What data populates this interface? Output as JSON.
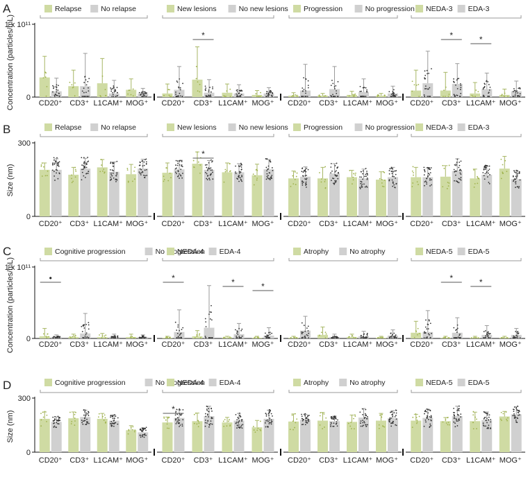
{
  "colors": {
    "green": "#cfdba3",
    "gray": "#d0d0d0",
    "green_dot": "#9fb24c",
    "gray_dot": "#333333",
    "axis": "#111111",
    "bracket": "#9a9a9a",
    "err_green": "#a7b664",
    "err_gray": "#9a9a9a"
  },
  "chart_data": [
    {
      "panel": "A",
      "type": "bar",
      "ylabel": "Concentration (particles/mL)",
      "ytick_labels": [
        "0",
        "1 x 10¹¹"
      ],
      "ylim": [
        0,
        1.0
      ],
      "groups": [
        {
          "legend": [
            "Relapse",
            "No relapse"
          ],
          "categories": [
            "CD20⁺",
            "CD3⁺",
            "L1CAM⁺",
            "MOG⁺"
          ],
          "series": [
            {
              "name": "Relapse",
              "values": [
                0.27,
                0.15,
                0.19,
                0.1
              ],
              "errors": [
                0.29,
                0.22,
                0.34,
                0.15
              ]
            },
            {
              "name": "No relapse",
              "values": [
                0.08,
                0.15,
                0.05,
                0.05
              ],
              "errors": [
                0.18,
                0.45,
                0.18,
                0.07
              ]
            }
          ],
          "significance": []
        },
        {
          "legend": [
            "New lesions",
            "No new lesions"
          ],
          "categories": [
            "CD20⁺",
            "CD3⁺",
            "L1CAM⁺",
            "MOG⁺"
          ],
          "series": [
            {
              "name": "New lesions",
              "values": [
                0.05,
                0.24,
                0.06,
                0.03
              ],
              "errors": [
                0.13,
                0.45,
                0.12,
                0.06
              ]
            },
            {
              "name": "No new lesions",
              "values": [
                0.1,
                0.06,
                0.05,
                0.05
              ],
              "errors": [
                0.32,
                0.18,
                0.12,
                0.08
              ]
            }
          ],
          "significance": [
            {
              "category": 1,
              "label": "*"
            }
          ]
        },
        {
          "legend": [
            "Progression",
            "No progression"
          ],
          "categories": [
            "CD20⁺",
            "CD3⁺",
            "L1CAM⁺",
            "MOG⁺"
          ],
          "series": [
            {
              "name": "Progression",
              "values": [
                0.02,
                0.02,
                0.03,
                0.02
              ],
              "errors": [
                0.04,
                0.03,
                0.05,
                0.03
              ]
            },
            {
              "name": "No progression",
              "values": [
                0.09,
                0.11,
                0.07,
                0.05
              ],
              "errors": [
                0.36,
                0.31,
                0.18,
                0.1
              ]
            }
          ],
          "significance": []
        },
        {
          "legend": [
            "NEDA-3",
            "EDA-3"
          ],
          "categories": [
            "CD20⁺",
            "CD3⁺",
            "L1CAM⁺",
            "MOG⁺"
          ],
          "series": [
            {
              "name": "NEDA-3",
              "values": [
                0.09,
                0.09,
                0.05,
                0.03
              ],
              "errors": [
                0.28,
                0.25,
                0.15,
                0.08
              ]
            },
            {
              "name": "EDA-3",
              "values": [
                0.19,
                0.18,
                0.11,
                0.08
              ],
              "errors": [
                0.44,
                0.28,
                0.22,
                0.14
              ]
            }
          ],
          "significance": [
            {
              "category": 1,
              "label": "*"
            },
            {
              "category": 2,
              "label": "*"
            }
          ]
        }
      ]
    },
    {
      "panel": "B",
      "type": "bar",
      "ylabel": "Size (nm)",
      "ytick_labels": [
        "0",
        "300"
      ],
      "ylim": [
        0,
        300
      ],
      "groups": [
        {
          "legend": [
            "Relapse",
            "No relapse"
          ],
          "categories": [
            "CD20⁺",
            "CD3⁺",
            "L1CAM⁺",
            "MOG⁺"
          ],
          "series": [
            {
              "name": "Relapse",
              "values": [
                190,
                170,
                200,
                172
              ],
              "errors": [
                28,
                30,
                32,
                40
              ]
            },
            {
              "name": "No relapse",
              "values": [
                190,
                195,
                182,
                195
              ],
              "errors": [
                45,
                42,
                40,
                38
              ]
            }
          ],
          "significance": []
        },
        {
          "legend": [
            "New lesions",
            "No new lesions"
          ],
          "categories": [
            "CD20⁺",
            "CD3⁺",
            "L1CAM⁺",
            "MOG⁺"
          ],
          "series": [
            {
              "name": "New lesions",
              "values": [
                178,
                215,
                180,
                168
              ],
              "errors": [
                40,
                48,
                38,
                45
              ]
            },
            {
              "name": "No new lesions",
              "values": [
                192,
                190,
                180,
                192
              ],
              "errors": [
                35,
                38,
                35,
                40
              ]
            }
          ],
          "significance": [
            {
              "category": 1,
              "label": "*"
            }
          ]
        },
        {
          "legend": [
            "Progression",
            "No progression"
          ],
          "categories": [
            "CD20⁺",
            "CD3⁺",
            "L1CAM⁺",
            "MOG⁺"
          ],
          "series": [
            {
              "name": "Progression",
              "values": [
                155,
                155,
                160,
                150
              ],
              "errors": [
                30,
                45,
                28,
                32
              ]
            },
            {
              "name": "No progression",
              "values": [
                162,
                175,
                155,
                160
              ],
              "errors": [
                40,
                40,
                38,
                40
              ]
            }
          ],
          "significance": []
        },
        {
          "legend": [
            "NEDA-3",
            "EDA-3"
          ],
          "categories": [
            "CD20⁺",
            "CD3⁺",
            "L1CAM⁺",
            "MOG⁺"
          ],
          "series": [
            {
              "name": "NEDA-3",
              "values": [
                160,
                162,
                155,
                195
              ],
              "errors": [
                40,
                45,
                38,
                50
              ]
            },
            {
              "name": "EDA-3",
              "values": [
                160,
                185,
                170,
                152
              ],
              "errors": [
                38,
                50,
                35,
                35
              ]
            }
          ],
          "significance": []
        }
      ]
    },
    {
      "panel": "C",
      "type": "bar",
      "ylabel": "Concentration (particles/mL)",
      "ytick_labels": [
        "0",
        "1 x 10¹¹"
      ],
      "ylim": [
        0,
        1.0
      ],
      "groups": [
        {
          "legend": [
            "Cognitive progression",
            "No progression"
          ],
          "categories": [
            "CD20⁺",
            "CD3⁺",
            "L1CAM⁺",
            "MOG⁺"
          ],
          "series": [
            {
              "name": "Cognitive progression",
              "values": [
                0.03,
                0.02,
                0.02,
                0.02
              ],
              "errors": [
                0.11,
                0.04,
                0.05,
                0.04
              ]
            },
            {
              "name": "No progression",
              "values": [
                0.02,
                0.07,
                0.02,
                0.02
              ],
              "errors": [
                0.03,
                0.28,
                0.04,
                0.03
              ]
            }
          ],
          "significance": [
            {
              "category": 0,
              "label": "•"
            }
          ]
        },
        {
          "legend": [
            "NEDA-4",
            "EDA-4"
          ],
          "categories": [
            "CD20⁺",
            "CD3⁺",
            "L1CAM⁺",
            "MOG⁺"
          ],
          "series": [
            {
              "name": "NEDA-4",
              "values": [
                0.01,
                0.03,
                0.01,
                0.01
              ],
              "errors": [
                0.02,
                0.08,
                0.02,
                0.02
              ]
            },
            {
              "name": "EDA-4",
              "values": [
                0.09,
                0.15,
                0.06,
                0.04
              ],
              "errors": [
                0.31,
                0.59,
                0.15,
                0.11
              ]
            }
          ],
          "significance": [
            {
              "category": 0,
              "label": "*"
            },
            {
              "category": 2,
              "label": "*"
            },
            {
              "category": 3,
              "label": "*"
            }
          ]
        },
        {
          "legend": [
            "Atrophy",
            "No atrophy"
          ],
          "categories": [
            "CD20⁺",
            "CD3⁺",
            "L1CAM⁺",
            "MOG⁺"
          ],
          "series": [
            {
              "name": "Atrophy",
              "values": [
                0.01,
                0.05,
                0.02,
                0.01
              ],
              "errors": [
                0.02,
                0.11,
                0.04,
                0.02
              ]
            },
            {
              "name": "No atrophy",
              "values": [
                0.11,
                0.02,
                0.03,
                0.04
              ],
              "errors": [
                0.2,
                0.04,
                0.07,
                0.08
              ]
            }
          ],
          "significance": []
        },
        {
          "legend": [
            "NEDA-5",
            "EDA-5"
          ],
          "categories": [
            "CD20⁺",
            "CD3⁺",
            "L1CAM⁺",
            "MOG⁺"
          ],
          "series": [
            {
              "name": "NEDA-5",
              "values": [
                0.08,
                0.01,
                0.01,
                0.01
              ],
              "errors": [
                0.16,
                0.02,
                0.02,
                0.02
              ]
            },
            {
              "name": "EDA-5",
              "values": [
                0.09,
                0.08,
                0.05,
                0.05
              ],
              "errors": [
                0.3,
                0.21,
                0.13,
                0.09
              ]
            }
          ],
          "significance": [
            {
              "category": 1,
              "label": "*"
            },
            {
              "category": 2,
              "label": "*"
            }
          ]
        }
      ]
    },
    {
      "panel": "D",
      "type": "bar",
      "ylabel": "Size (nm)",
      "ytick_labels": [
        "0",
        "300"
      ],
      "ylim": [
        0,
        300
      ],
      "groups": [
        {
          "legend": [
            "Cognitive progression",
            "No progression"
          ],
          "categories": [
            "CD20⁺",
            "CD3⁺",
            "L1CAM⁺",
            "MOG⁺"
          ],
          "series": [
            {
              "name": "Cognitive progression",
              "values": [
                185,
                188,
                185,
                122
              ],
              "errors": [
                38,
                35,
                30,
                25
              ]
            },
            {
              "name": "No progression",
              "values": [
                168,
                195,
                175,
                110
              ],
              "errors": [
                28,
                38,
                30,
                25
              ]
            }
          ],
          "significance": []
        },
        {
          "legend": [
            "NEDA-4",
            "EDA-4"
          ],
          "categories": [
            "CD20⁺",
            "CD3⁺",
            "L1CAM⁺",
            "MOG⁺"
          ],
          "series": [
            {
              "name": "NEDA-4",
              "values": [
                165,
                172,
                165,
                138
              ],
              "errors": [
                30,
                45,
                28,
                38
              ]
            },
            {
              "name": "EDA-4",
              "values": [
                190,
                200,
                175,
                185
              ],
              "errors": [
                45,
                55,
                40,
                48
              ]
            }
          ],
          "significance": [
            {
              "category": 0,
              "label": "*"
            }
          ]
        },
        {
          "legend": [
            "Atrophy",
            "No atrophy"
          ],
          "categories": [
            "CD20⁺",
            "CD3⁺",
            "L1CAM⁺",
            "MOG⁺"
          ],
          "series": [
            {
              "name": "Atrophy",
              "values": [
                170,
                175,
                168,
                175
              ],
              "errors": [
                42,
                45,
                38,
                40
              ]
            },
            {
              "name": "No atrophy",
              "values": [
                180,
                172,
                192,
                188
              ],
              "errors": [
                30,
                28,
                50,
                42
              ]
            }
          ],
          "significance": []
        },
        {
          "legend": [
            "NEDA-5",
            "EDA-5"
          ],
          "categories": [
            "CD20⁺",
            "CD3⁺",
            "L1CAM⁺",
            "MOG⁺"
          ],
          "series": [
            {
              "name": "NEDA-5",
              "values": [
                175,
                172,
                172,
                198
              ],
              "errors": [
                35,
                20,
                50,
                28
              ]
            },
            {
              "name": "EDA-5",
              "values": [
                190,
                200,
                178,
                210
              ],
              "errors": [
                48,
                55,
                45,
                42
              ]
            }
          ],
          "significance": []
        }
      ]
    }
  ]
}
